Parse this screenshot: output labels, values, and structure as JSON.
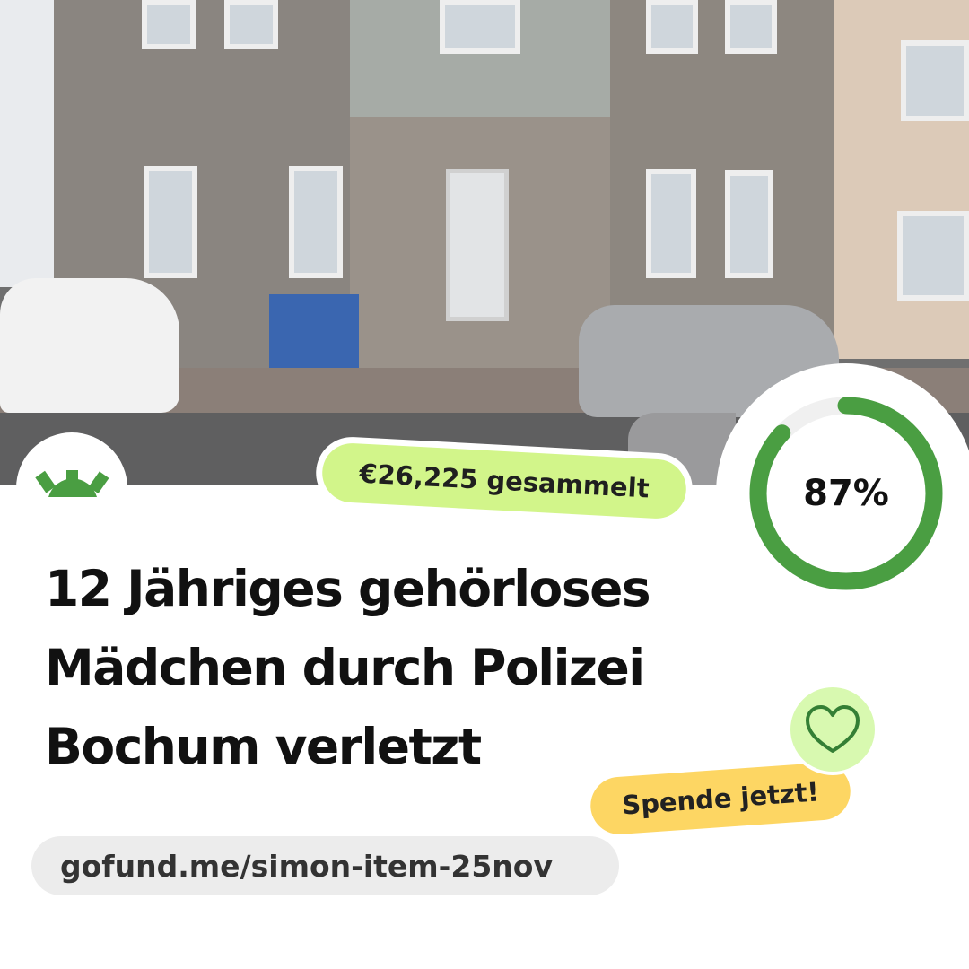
{
  "campaign": {
    "amount_raised": "€26,225 gesammelt",
    "progress_percent": 87,
    "progress_label": "87%",
    "title_lines": [
      "12 Jähriges gehörloses",
      "Mädchen durch Polizei",
      "Bochum verletzt"
    ],
    "url": "gofund.me/simon-item-25nov",
    "cta": "Spende jetzt!"
  },
  "icons": {
    "logo": "gofundme-sun-logo",
    "heart": "heart-outline-icon"
  },
  "colors": {
    "brand_green": "#4a9e42",
    "amount_pill": "#d2f58a",
    "cta_pill": "#fdd663",
    "heart_bg": "#d8f9b0",
    "ring_track": "#f0f0f0"
  }
}
